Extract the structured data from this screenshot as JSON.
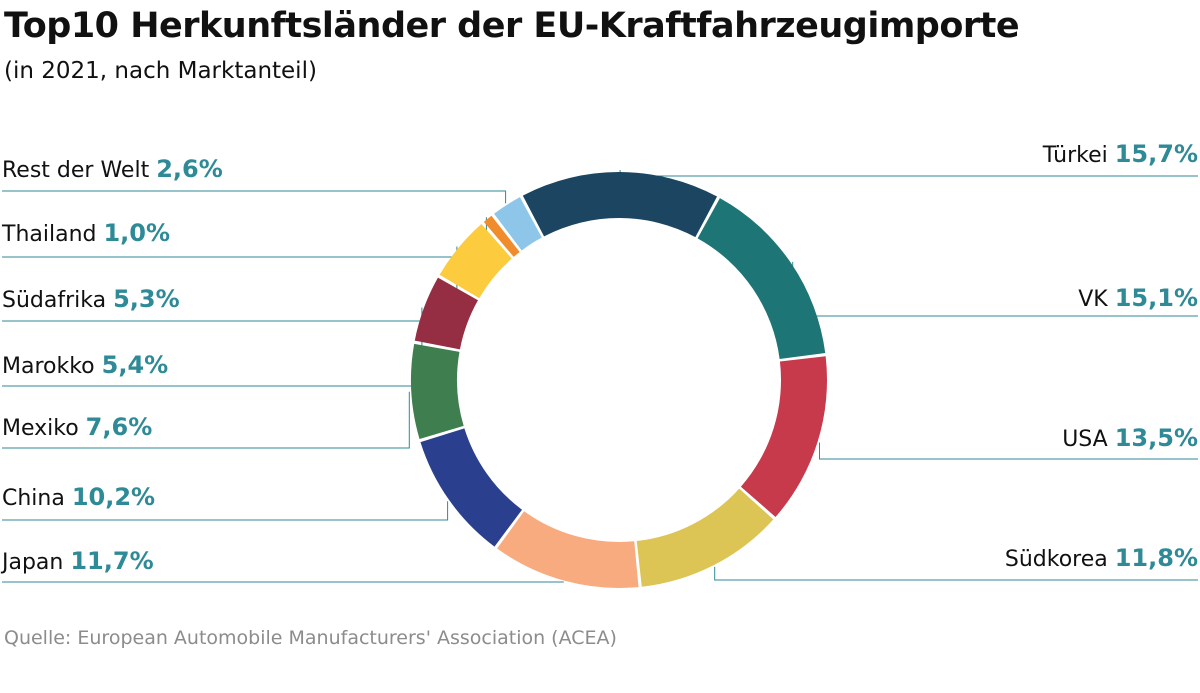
{
  "header": {
    "title": "Top10 Herkunftsländer der EU-Kraftfahrzeugimporte",
    "subtitle": "(in 2021, nach Marktanteil)"
  },
  "footer": {
    "source": "Quelle: European Automobile Manufacturers' Association (ACEA)"
  },
  "colors": {
    "value_text": "#2e8a96",
    "leader_line": "#2e8a96"
  },
  "chart_data": {
    "type": "pie",
    "variant": "donut",
    "title": "Top10 Herkunftsländer der EU-Kraftfahrzeugimporte",
    "subtitle": "(in 2021, nach Marktanteil)",
    "unit": "%",
    "slices": [
      {
        "label": "Türkei",
        "value": 15.7,
        "display": "15,7%",
        "color": "#1b4560",
        "side": "right"
      },
      {
        "label": "VK",
        "value": 15.1,
        "display": "15,1%",
        "color": "#1e7575",
        "side": "right"
      },
      {
        "label": "USA",
        "value": 13.5,
        "display": "13,5%",
        "color": "#c63a4c",
        "side": "right"
      },
      {
        "label": "Südkorea",
        "value": 11.8,
        "display": "11,8%",
        "color": "#dcc554",
        "side": "right"
      },
      {
        "label": "Japan",
        "value": 11.7,
        "display": "11,7%",
        "color": "#f7ab7e",
        "side": "left"
      },
      {
        "label": "China",
        "value": 10.2,
        "display": "10,2%",
        "color": "#2b3f8f",
        "side": "left"
      },
      {
        "label": "Mexiko",
        "value": 7.6,
        "display": "7,6%",
        "color": "#3f7e4e",
        "side": "left"
      },
      {
        "label": "Marokko",
        "value": 5.4,
        "display": "5,4%",
        "color": "#952e42",
        "side": "left"
      },
      {
        "label": "Südafrika",
        "value": 5.3,
        "display": "5,3%",
        "color": "#fccb3e",
        "side": "left"
      },
      {
        "label": "Thailand",
        "value": 1.0,
        "display": "1,0%",
        "color": "#f08c2c",
        "side": "left"
      },
      {
        "label": "Rest der Welt",
        "value": 2.6,
        "display": "2,6%",
        "color": "#8ec6ea",
        "side": "left"
      }
    ]
  }
}
